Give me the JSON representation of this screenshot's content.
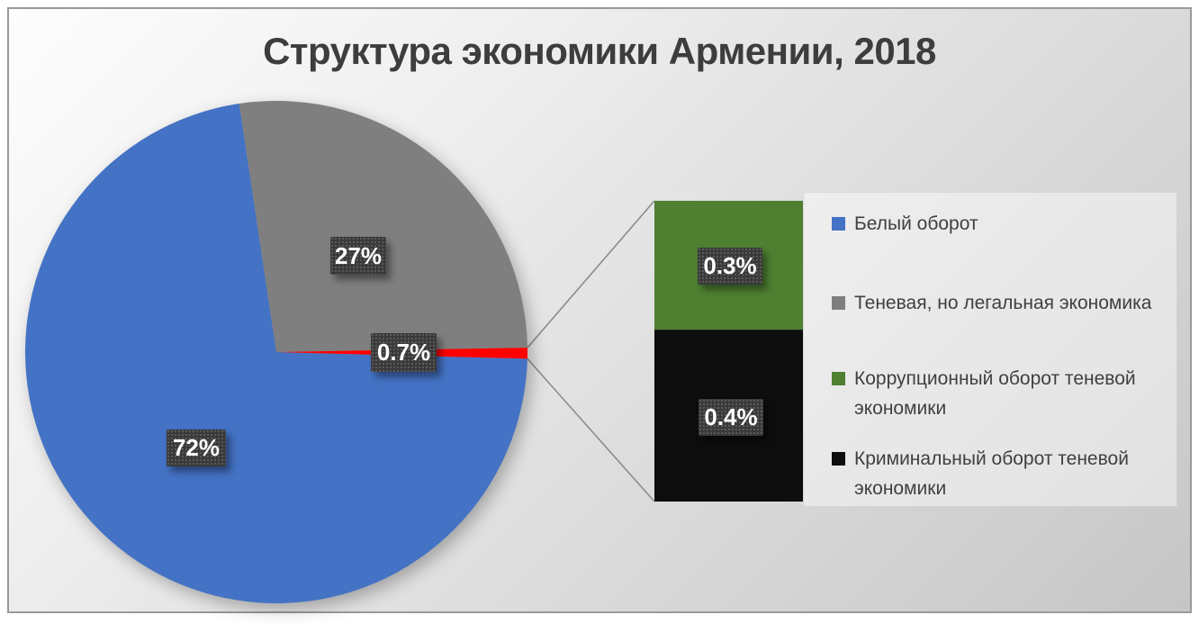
{
  "chart_data": {
    "type": "pie",
    "subtype": "bar-of-pie",
    "title": "Структура экономики Армении, 2018",
    "unit": "%",
    "legend_position": "right",
    "pie_slices": [
      {
        "id": "white-turnover",
        "name": "Белый оборот",
        "value": 72,
        "label": "72%",
        "color": "#4472C4"
      },
      {
        "id": "shadow-legal-economy",
        "name": "Теневая, но легальная экономика",
        "value": 27,
        "label": "27%",
        "color": "#7F7F7F"
      },
      {
        "id": "other-combined",
        "value": 0.7,
        "label": "0.7%",
        "color": "#FF0000"
      }
    ],
    "bar_segments": [
      {
        "id": "corruption-turnover",
        "name": "Коррупционный оборот теневой экономики",
        "value": 0.3,
        "label": "0.3%",
        "color": "#4F8032"
      },
      {
        "id": "criminal-turnover",
        "name": "Криминальный оборот теневой экономики",
        "value": 0.4,
        "label": "0.4%",
        "color": "#0D0D0D"
      }
    ],
    "legend": [
      {
        "id": "white-turnover",
        "label": "Белый оборот",
        "color": "#4472C4"
      },
      {
        "id": "shadow-legal-economy",
        "label": "Теневая, но легальная экономика",
        "color": "#7F7F7F"
      },
      {
        "id": "corruption-turnover",
        "label": "Коррупционный оборот теневой экономики",
        "color": "#4F8032"
      },
      {
        "id": "criminal-turnover",
        "label": "Криминальный оборот теневой экономики",
        "color": "#0D0D0D"
      }
    ]
  }
}
